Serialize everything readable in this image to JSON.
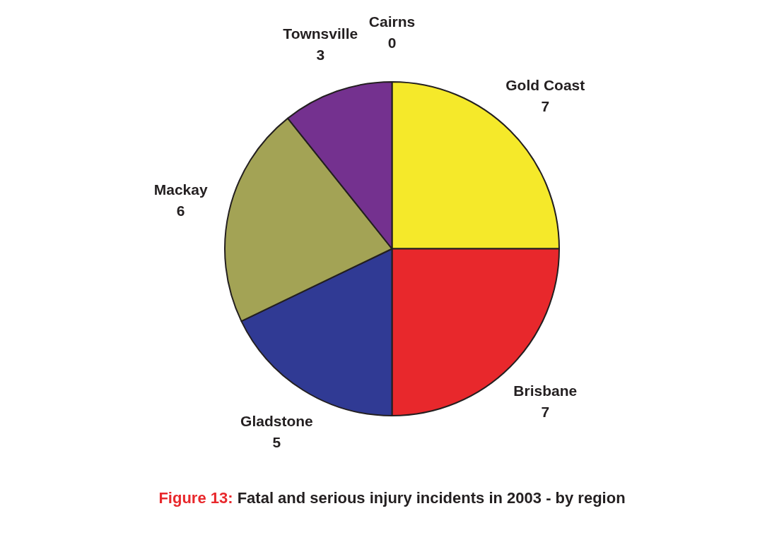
{
  "chart_data": {
    "type": "pie",
    "title": "Figure 13: Fatal and serious injury incidents in 2003 - by region",
    "categories": [
      "Gold Coast",
      "Brisbane",
      "Gladstone",
      "Mackay",
      "Townsville",
      "Cairns"
    ],
    "values": [
      7,
      7,
      5,
      6,
      3,
      0
    ],
    "colors": [
      "#f5e92a",
      "#e8282c",
      "#303a94",
      "#a3a355",
      "#74318f",
      "#4f9bd1"
    ],
    "value_labels": [
      "7",
      "7",
      "5",
      "6",
      "3",
      "0"
    ],
    "legend": false
  }
}
